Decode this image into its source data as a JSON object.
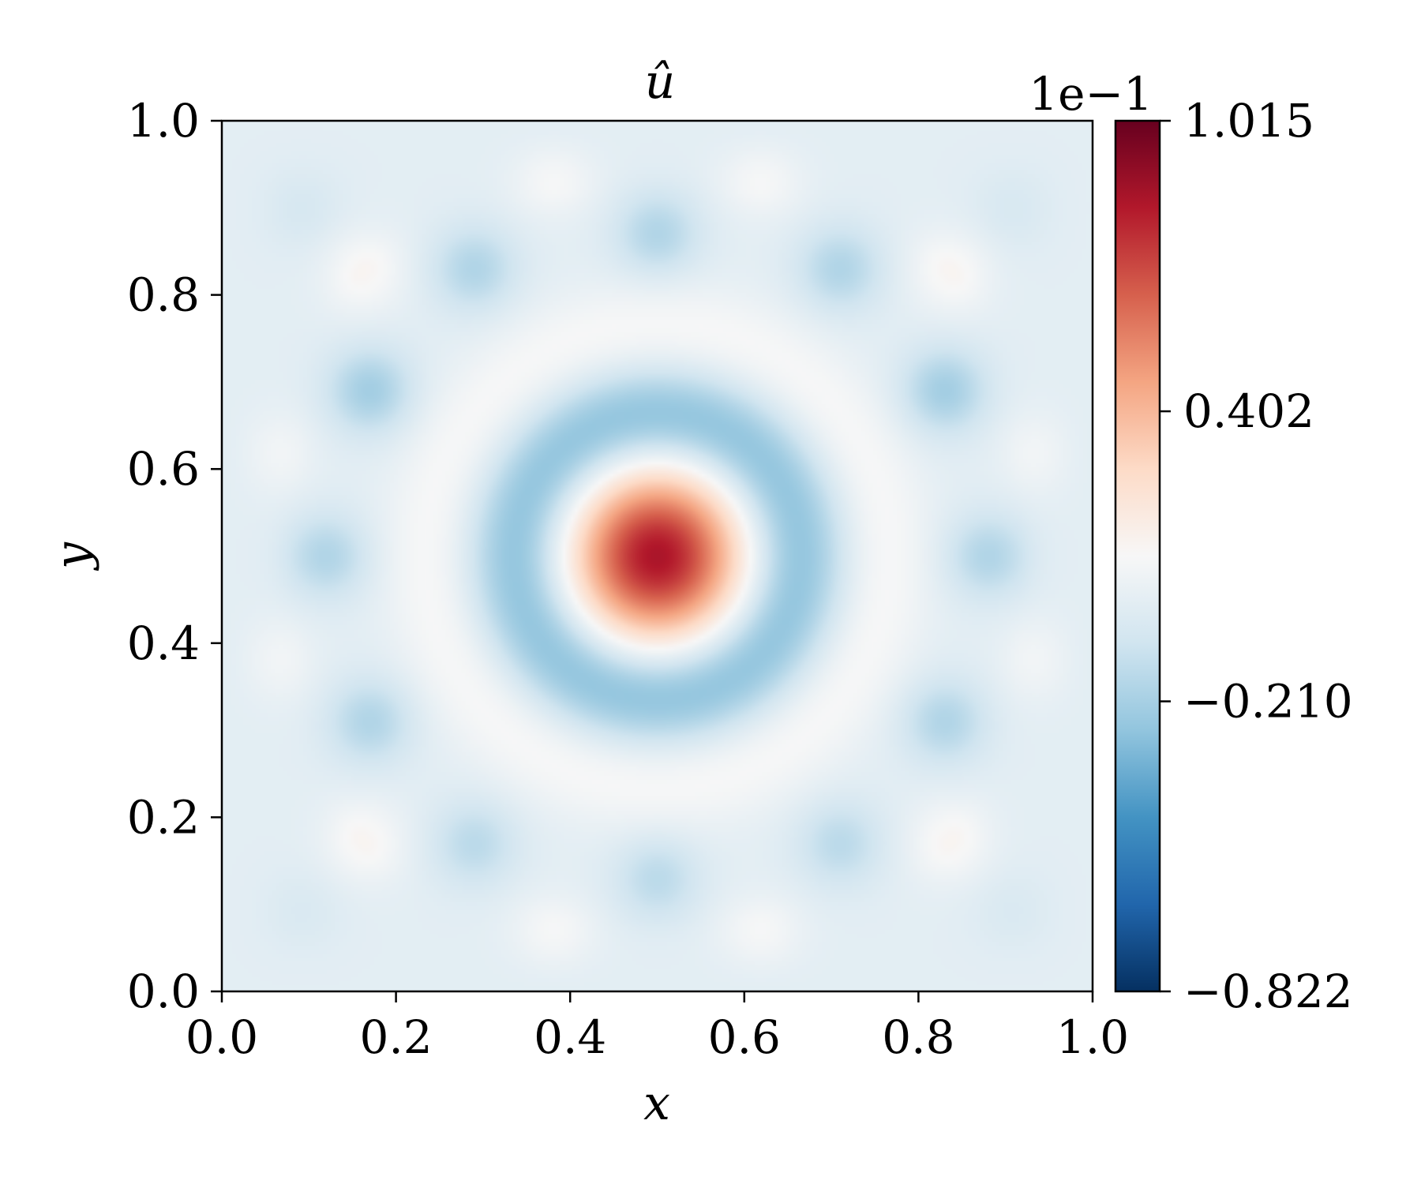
{
  "chart_data": {
    "type": "heatmap",
    "title": "û",
    "xlabel": "x",
    "ylabel": "y",
    "xlim": [
      0.0,
      1.0
    ],
    "ylim": [
      0.0,
      1.0
    ],
    "x_ticks": [
      "0.0",
      "0.2",
      "0.4",
      "0.6",
      "0.8",
      "1.0"
    ],
    "x_tick_values": [
      0.0,
      0.2,
      0.4,
      0.6,
      0.8,
      1.0
    ],
    "y_ticks": [
      "0.0",
      "0.2",
      "0.4",
      "0.6",
      "0.8",
      "1.0"
    ],
    "y_tick_values": [
      0.0,
      0.2,
      0.4,
      0.6,
      0.8,
      1.0
    ],
    "grid": false,
    "colormap": "RdBu_r",
    "colorbar": {
      "min": -0.822,
      "max": 1.015,
      "ticks": [
        "−0.822",
        "−0.210",
        "0.402",
        "1.015"
      ],
      "tick_values": [
        -0.822,
        -0.21,
        0.402,
        1.015
      ],
      "offset_text": "1e−1",
      "colors": [
        "#053061",
        "#2166ac",
        "#4393c3",
        "#92c5de",
        "#d1e5f0",
        "#f7f7f7",
        "#fddbc7",
        "#f4a582",
        "#d6604d",
        "#b2182b",
        "#67001f"
      ]
    },
    "field_features": [
      {
        "shape": "peak",
        "x": 0.5,
        "y": 0.5,
        "value": 0.85
      },
      {
        "shape": "ring",
        "x": 0.5,
        "y": 0.5,
        "radius": 0.16,
        "value": -0.3
      },
      {
        "shape": "ring",
        "x": 0.5,
        "y": 0.5,
        "radius": 0.26,
        "value": 0.1
      },
      {
        "shape": "spot",
        "x": 0.62,
        "y": 0.945,
        "value": 0.12
      },
      {
        "shape": "spot",
        "x": 0.38,
        "y": 0.945,
        "value": 0.12
      },
      {
        "shape": "spot",
        "x": 0.62,
        "y": 0.055,
        "value": 0.12
      },
      {
        "shape": "spot",
        "x": 0.38,
        "y": 0.055,
        "value": 0.12
      },
      {
        "shape": "spot",
        "x": 0.16,
        "y": 0.83,
        "value": 0.12
      },
      {
        "shape": "spot",
        "x": 0.84,
        "y": 0.83,
        "value": 0.12
      },
      {
        "shape": "spot",
        "x": 0.16,
        "y": 0.17,
        "value": 0.12
      },
      {
        "shape": "spot",
        "x": 0.84,
        "y": 0.17,
        "value": 0.12
      },
      {
        "shape": "spot",
        "x": 0.05,
        "y": 0.62,
        "value": 0.1
      },
      {
        "shape": "spot",
        "x": 0.05,
        "y": 0.38,
        "value": 0.1
      },
      {
        "shape": "spot",
        "x": 0.95,
        "y": 0.62,
        "value": 0.1
      },
      {
        "shape": "spot",
        "x": 0.95,
        "y": 0.38,
        "value": 0.1
      },
      {
        "shape": "spot",
        "x": 0.5,
        "y": 0.87,
        "value": -0.18
      },
      {
        "shape": "spot",
        "x": 0.5,
        "y": 0.13,
        "value": -0.15
      },
      {
        "shape": "spot",
        "x": 0.29,
        "y": 0.83,
        "value": -0.18
      },
      {
        "shape": "spot",
        "x": 0.71,
        "y": 0.83,
        "value": -0.18
      },
      {
        "shape": "spot",
        "x": 0.29,
        "y": 0.17,
        "value": -0.15
      },
      {
        "shape": "spot",
        "x": 0.71,
        "y": 0.17,
        "value": -0.15
      },
      {
        "shape": "spot",
        "x": 0.17,
        "y": 0.69,
        "value": -0.22
      },
      {
        "shape": "spot",
        "x": 0.83,
        "y": 0.69,
        "value": -0.22
      },
      {
        "shape": "spot",
        "x": 0.17,
        "y": 0.31,
        "value": -0.18
      },
      {
        "shape": "spot",
        "x": 0.83,
        "y": 0.31,
        "value": -0.18
      },
      {
        "shape": "spot",
        "x": 0.12,
        "y": 0.5,
        "value": -0.18
      },
      {
        "shape": "spot",
        "x": 0.88,
        "y": 0.5,
        "value": -0.18
      },
      {
        "shape": "spot",
        "x": 0.08,
        "y": 0.91,
        "value": -0.18
      },
      {
        "shape": "spot",
        "x": 0.92,
        "y": 0.91,
        "value": -0.16
      },
      {
        "shape": "spot",
        "x": 0.08,
        "y": 0.08,
        "value": -0.15
      },
      {
        "shape": "spot",
        "x": 0.92,
        "y": 0.08,
        "value": -0.15
      }
    ]
  }
}
